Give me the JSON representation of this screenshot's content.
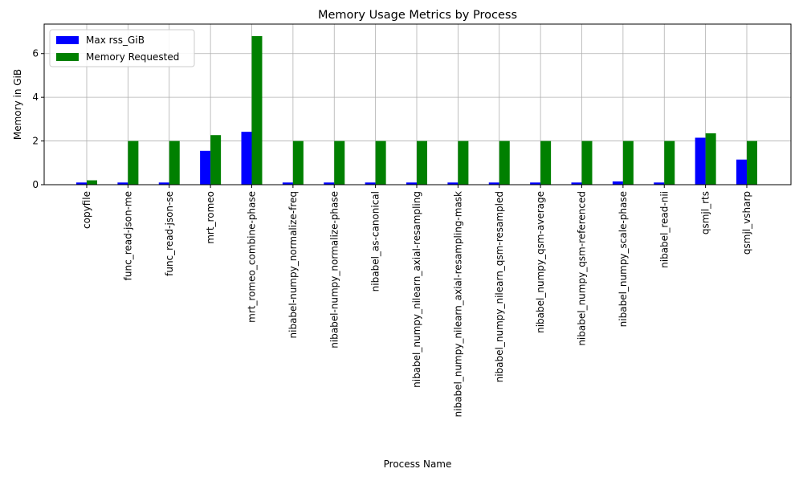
{
  "chart_data": {
    "type": "bar",
    "title": "Memory Usage Metrics by Process",
    "x_label": "Process Name",
    "y_label": "Memory in GiB",
    "categories": [
      "copyfile",
      "func_read-json-me",
      "func_read-json-se",
      "mrt_romeo",
      "mrt_romeo_combine-phase",
      "nibabel-numpy_normalize-freq",
      "nibabel-numpy_normalize-phase",
      "nibabel_as-canonical",
      "nibabel_numpy_nilearn_axial-resampling",
      "nibabel_numpy_nilearn_axial-resampling-mask",
      "nibabel_numpy_nilearn_qsm-resampled",
      "nibabel_numpy_qsm-average",
      "nibabel_numpy_qsm-referenced",
      "nibabel_numpy_scale-phase",
      "nibabel_read-nii",
      "qsmjl_rts",
      "qsmjl_vsharp"
    ],
    "series": [
      {
        "name": "Max rss_GiB",
        "color": "#0000ff",
        "values": [
          0.1,
          0.1,
          0.1,
          1.55,
          2.42,
          0.1,
          0.1,
          0.1,
          0.1,
          0.1,
          0.1,
          0.1,
          0.1,
          0.15,
          0.1,
          2.15,
          1.15
        ]
      },
      {
        "name": "Memory Requested",
        "color": "#008000",
        "values": [
          0.2,
          2,
          2,
          2.27,
          6.8,
          2,
          2,
          2,
          2,
          2,
          2,
          2,
          2,
          2,
          2,
          2.35,
          2
        ]
      }
    ],
    "ylim": [
      0,
      7.35
    ],
    "yticks": [
      0,
      2,
      4,
      6
    ],
    "grid": true,
    "legend": "upper left"
  }
}
